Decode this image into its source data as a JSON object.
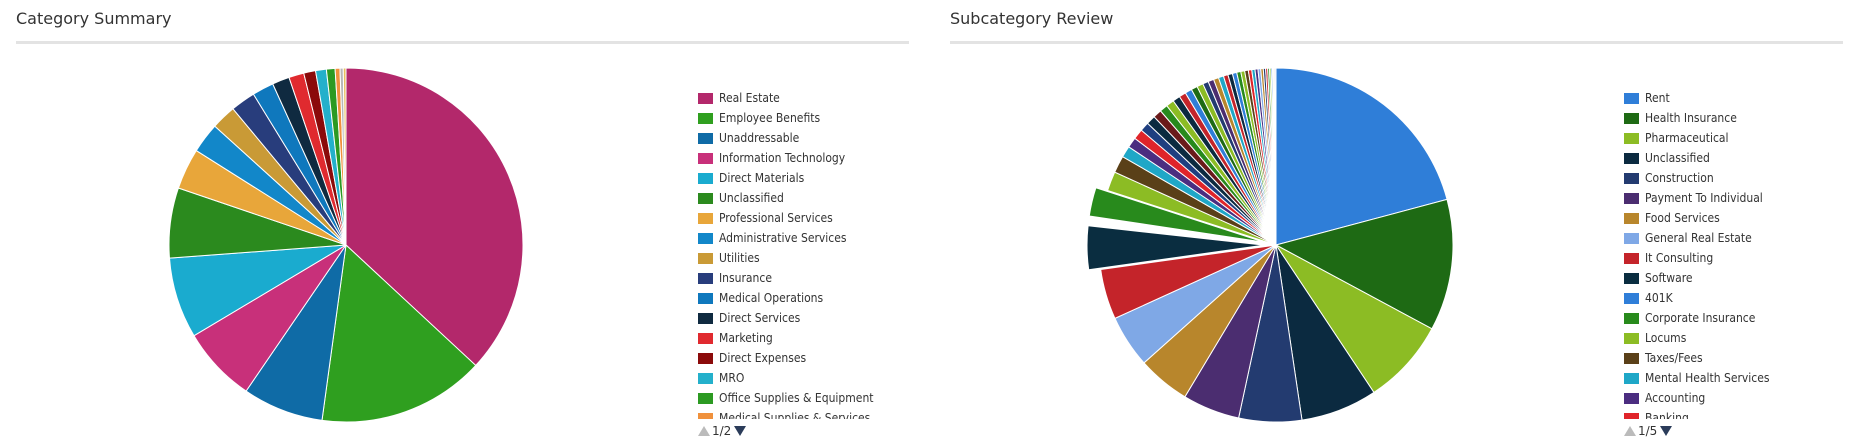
{
  "chart_data": [
    {
      "type": "pie",
      "title": "Category Summary",
      "legend_position": "right",
      "pager": {
        "current": 1,
        "total": 2,
        "label": "1/2"
      },
      "slices": [
        {
          "label": "Real Estate",
          "value": 37.5,
          "color": "#b3286b"
        },
        {
          "label": "Employee Benefits",
          "value": 15.5,
          "color": "#2f9f1f"
        },
        {
          "label": "Unaddressable",
          "value": 7.5,
          "color": "#0f6ba6"
        },
        {
          "label": "Information Technology",
          "value": 7.0,
          "color": "#c8307a"
        },
        {
          "label": "Direct Materials",
          "value": 7.5,
          "color": "#1aabcf"
        },
        {
          "label": "Unclassified",
          "value": 6.5,
          "color": "#2b8a1e"
        },
        {
          "label": "Professional Services",
          "value": 3.8,
          "color": "#e8a63a"
        },
        {
          "label": "Administrative Services",
          "value": 2.8,
          "color": "#1287c9"
        },
        {
          "label": "Utilities",
          "value": 2.3,
          "color": "#c99a36"
        },
        {
          "label": "Insurance",
          "value": 2.3,
          "color": "#283d7c"
        },
        {
          "label": "Medical Operations",
          "value": 2.0,
          "color": "#0f78bd"
        },
        {
          "label": "Direct Services",
          "value": 1.6,
          "color": "#0f2a40"
        },
        {
          "label": "Marketing",
          "value": 1.4,
          "color": "#e02a2f"
        },
        {
          "label": "Direct Expenses",
          "value": 1.1,
          "color": "#8b0a0a"
        },
        {
          "label": "MRO",
          "value": 1.0,
          "color": "#24b0cb"
        },
        {
          "label": "Office Supplies & Equipment",
          "value": 0.8,
          "color": "#2c9a22"
        },
        {
          "label": "Medical Supplies & Services",
          "value": 0.45,
          "color": "#f0913c"
        },
        {
          "label": "",
          "value": 0.3,
          "color": "#b8b8b8"
        },
        {
          "label": "",
          "value": 0.25,
          "color": "#e8c060"
        }
      ]
    },
    {
      "type": "pie",
      "title": "Subcategory Review",
      "legend_position": "right",
      "pager": {
        "current": 1,
        "total": 5,
        "label": "1/5"
      },
      "slices": [
        {
          "label": "Rent",
          "value": 20.0,
          "color": "#2f7ed8"
        },
        {
          "label": "Health Insurance",
          "value": 11.5,
          "color": "#1e6a14"
        },
        {
          "label": "Pharmaceutical",
          "value": 7.5,
          "color": "#8cbc24"
        },
        {
          "label": "Unclassified",
          "value": 6.7,
          "color": "#0b2a40"
        },
        {
          "label": "Construction",
          "value": 5.5,
          "color": "#233b70"
        },
        {
          "label": "Payment To Individual",
          "value": 5.0,
          "color": "#4b2d70"
        },
        {
          "label": "Food Services",
          "value": 4.6,
          "color": "#b8862c"
        },
        {
          "label": "General Real Estate",
          "value": 4.6,
          "color": "#7fa8e6"
        },
        {
          "label": "It Consulting",
          "value": 4.4,
          "color": "#c4242a"
        },
        {
          "label": "Software",
          "value": 3.8,
          "color": "#0a2d40"
        },
        {
          "label": "401K",
          "value": 0.6,
          "color": "#ffffff"
        },
        {
          "label": "Corporate Insurance",
          "value": 2.5,
          "color": "#288a1c"
        },
        {
          "label": "Locums",
          "value": 1.7,
          "color": "#8cbc24"
        },
        {
          "label": "Taxes/Fees",
          "value": 1.5,
          "color": "#5a4018"
        },
        {
          "label": "Mental Health Services",
          "value": 1.0,
          "color": "#1fa7c7"
        },
        {
          "label": "Accounting",
          "value": 0.9,
          "color": "#4b2d80"
        },
        {
          "label": "Banking",
          "value": 0.9,
          "color": "#e0242a"
        },
        {
          "label": "",
          "value": 0.8,
          "color": "#1f3f80"
        },
        {
          "label": "",
          "value": 0.8,
          "color": "#0b2a40"
        },
        {
          "label": "",
          "value": 0.75,
          "color": "#6a1a1a"
        },
        {
          "label": "",
          "value": 0.7,
          "color": "#288a1c"
        },
        {
          "label": "",
          "value": 0.7,
          "color": "#8cbc24"
        },
        {
          "label": "",
          "value": 0.65,
          "color": "#0b2a40"
        },
        {
          "label": "",
          "value": 0.6,
          "color": "#c4242a"
        },
        {
          "label": "",
          "value": 0.6,
          "color": "#2f7ed8"
        },
        {
          "label": "",
          "value": 0.55,
          "color": "#1e6a14"
        },
        {
          "label": "",
          "value": 0.55,
          "color": "#8cbc24"
        },
        {
          "label": "",
          "value": 0.5,
          "color": "#233b70"
        },
        {
          "label": "",
          "value": 0.5,
          "color": "#4b2d70"
        },
        {
          "label": "",
          "value": 0.45,
          "color": "#b8862c"
        },
        {
          "label": "",
          "value": 0.45,
          "color": "#1fa7c7"
        },
        {
          "label": "",
          "value": 0.4,
          "color": "#c4242a"
        },
        {
          "label": "",
          "value": 0.4,
          "color": "#0b2a40"
        },
        {
          "label": "",
          "value": 0.38,
          "color": "#2f7ed8"
        },
        {
          "label": "",
          "value": 0.36,
          "color": "#288a1c"
        },
        {
          "label": "",
          "value": 0.34,
          "color": "#8cbc24"
        },
        {
          "label": "",
          "value": 0.32,
          "color": "#5a4018"
        },
        {
          "label": "",
          "value": 0.3,
          "color": "#e0242a"
        },
        {
          "label": "",
          "value": 0.28,
          "color": "#1fa7c7"
        },
        {
          "label": "",
          "value": 0.26,
          "color": "#4b2d80"
        },
        {
          "label": "",
          "value": 0.24,
          "color": "#7fa8e6"
        },
        {
          "label": "",
          "value": 0.22,
          "color": "#b8862c"
        },
        {
          "label": "",
          "value": 0.2,
          "color": "#233b70"
        },
        {
          "label": "",
          "value": 0.18,
          "color": "#c4242a"
        },
        {
          "label": "",
          "value": 0.16,
          "color": "#288a1c"
        },
        {
          "label": "",
          "value": 0.14,
          "color": "#8cbc24"
        },
        {
          "label": "",
          "value": 0.12,
          "color": "#2f7ed8"
        },
        {
          "label": "",
          "value": 0.1,
          "color": "#c8c8c8"
        },
        {
          "label": "",
          "value": 0.1,
          "color": "#e8a0a0"
        },
        {
          "label": "",
          "value": 0.1,
          "color": "#a0c0e8"
        }
      ]
    }
  ]
}
